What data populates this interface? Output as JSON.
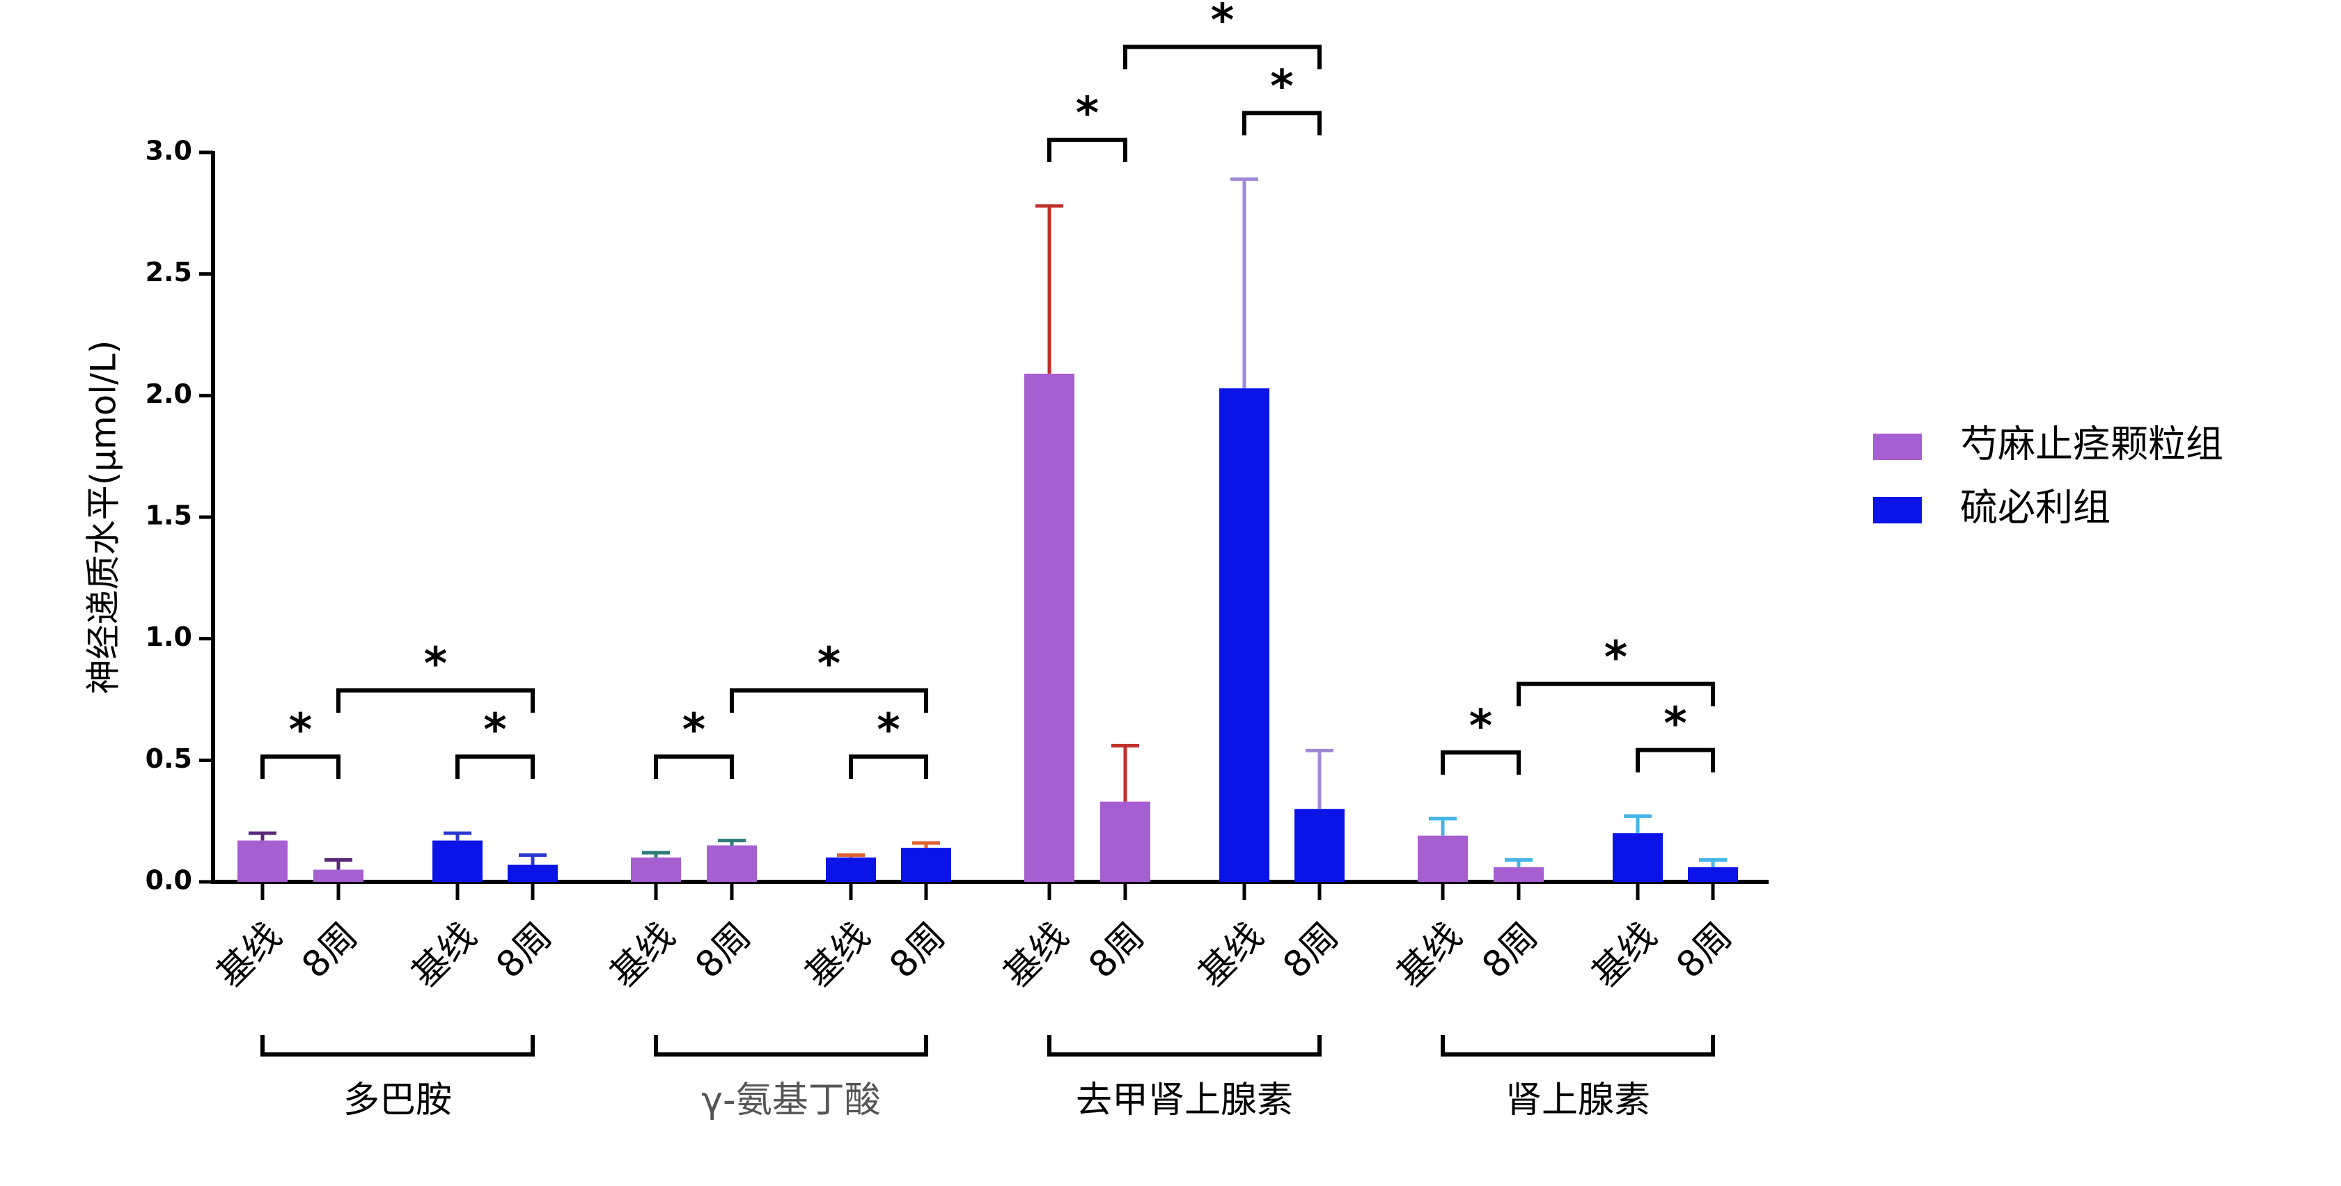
{
  "chart_data": {
    "type": "bar",
    "y_label": "神经递质水平(μmol/L)",
    "categories": [
      "基线",
      "8周",
      "基线",
      "8周",
      "基线",
      "8周",
      "基线",
      "8周",
      "基线",
      "8周",
      "基线",
      "8周",
      "基线",
      "8周",
      "基线",
      "8周"
    ],
    "group_labels": [
      "多巴胺",
      "γ-氨基丁酸",
      "去甲肾上腺素",
      "肾上腺素"
    ],
    "group_label_colors": [
      "#000000",
      "#555555",
      "#000000",
      "#000000"
    ],
    "series": [
      {
        "name": "芍麻止痉颗粒组",
        "color": "#a65fd1",
        "values": [
          0.17,
          0.05,
          null,
          null,
          0.1,
          0.15,
          null,
          null,
          2.09,
          0.33,
          null,
          null,
          0.19,
          0.06,
          null,
          null
        ],
        "errors": [
          0.03,
          0.04,
          null,
          null,
          0.02,
          0.02,
          null,
          null,
          0.69,
          0.23,
          null,
          null,
          0.07,
          0.03,
          null,
          null
        ],
        "error_colors": [
          "#5a2a7a",
          "#5a2a7a",
          null,
          null,
          "#2e7d7d",
          "#2e7d7d",
          null,
          null,
          "#c0302a",
          "#c0302a",
          null,
          null,
          "#45b5e8",
          "#45b5e8",
          null,
          null
        ]
      },
      {
        "name": "硫必利组",
        "color": "#0a14e6",
        "values": [
          null,
          null,
          0.17,
          0.07,
          null,
          null,
          0.1,
          0.14,
          null,
          null,
          2.03,
          0.3,
          null,
          null,
          0.2,
          0.06
        ],
        "errors": [
          null,
          null,
          0.03,
          0.04,
          null,
          null,
          0.01,
          0.02,
          null,
          null,
          0.86,
          0.24,
          null,
          null,
          0.07,
          0.03
        ],
        "error_colors": [
          null,
          null,
          "#2a3ad0",
          "#2a3ad0",
          null,
          null,
          "#e06030",
          "#e06030",
          null,
          null,
          "#a08ad8",
          "#a08ad8",
          null,
          null,
          "#45b5e8",
          "#45b5e8"
        ]
      }
    ],
    "significance": [
      {
        "text": "*",
        "from": 0,
        "to": 1
      },
      {
        "text": "*",
        "from": 2,
        "to": 3
      },
      {
        "text": "*",
        "from": 1,
        "to": 3
      },
      {
        "text": "*",
        "from": 4,
        "to": 5
      },
      {
        "text": "*",
        "from": 6,
        "to": 7
      },
      {
        "text": "*",
        "from": 5,
        "to": 7
      },
      {
        "text": "*",
        "from": 8,
        "to": 9
      },
      {
        "text": "*",
        "from": 10,
        "to": 11
      },
      {
        "text": "*",
        "from": 9,
        "to": 11
      },
      {
        "text": "*",
        "from": 12,
        "to": 13
      },
      {
        "text": "*",
        "from": 14,
        "to": 15
      },
      {
        "text": "*",
        "from": 13,
        "to": 15
      }
    ],
    "ylim": [
      0,
      3.0
    ],
    "yticks": [
      {
        "value": 0,
        "label": "0.0"
      },
      0.5,
      {
        "value": 1.0,
        "label": "1.0"
      },
      1.5,
      {
        "value": 2.0,
        "label": "2.0"
      },
      2.5,
      {
        "value": 3.0,
        "label": "3.0"
      }
    ],
    "legend": "right"
  }
}
